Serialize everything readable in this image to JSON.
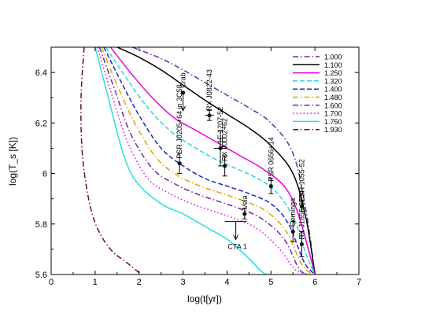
{
  "chart_data": {
    "type": "line",
    "xlabel": "log(t[yr])",
    "ylabel": "log(T_s [K])",
    "xlim": [
      0,
      7
    ],
    "ylim": [
      5.6,
      6.5
    ],
    "xticks": [
      "0",
      "1",
      "2",
      "3",
      "4",
      "5",
      "6",
      "7"
    ],
    "yticks": [
      "5.6",
      "5.8",
      "6",
      "6.2",
      "6.4"
    ],
    "legend_position": "top-right",
    "series": [
      {
        "name": "1.000",
        "color": "#6a2c9e",
        "dash": "dashdot",
        "x": [
          1.85,
          2.5,
          3.0,
          3.5,
          4.0,
          4.5,
          5.0,
          5.5,
          5.8,
          6.0
        ],
        "y": [
          6.5,
          6.455,
          6.41,
          6.36,
          6.31,
          6.26,
          6.2,
          6.08,
          5.85,
          5.6
        ]
      },
      {
        "name": "1.100",
        "color": "#000000",
        "dash": "solid",
        "x": [
          1.5,
          2.0,
          2.5,
          3.0,
          3.5,
          4.0,
          4.5,
          5.0,
          5.5,
          5.8,
          6.0
        ],
        "y": [
          6.5,
          6.46,
          6.41,
          6.35,
          6.29,
          6.235,
          6.18,
          6.11,
          6.0,
          5.82,
          5.6
        ]
      },
      {
        "name": "1.250",
        "color": "#e800e8",
        "dash": "solid",
        "x": [
          1.35,
          1.8,
          2.3,
          2.8,
          3.3,
          3.8,
          4.3,
          4.8,
          5.3,
          5.6,
          5.85,
          6.0
        ],
        "y": [
          6.5,
          6.4,
          6.3,
          6.22,
          6.17,
          6.12,
          6.07,
          6.02,
          5.95,
          5.85,
          5.7,
          5.6
        ]
      },
      {
        "name": "1.320",
        "color": "#28d8e0",
        "dash": "dash",
        "x": [
          1.25,
          1.7,
          2.2,
          2.7,
          3.2,
          3.7,
          4.2,
          4.7,
          5.1,
          5.5,
          5.8,
          6.0
        ],
        "y": [
          6.5,
          6.38,
          6.26,
          6.17,
          6.11,
          6.06,
          6.02,
          5.98,
          5.93,
          5.83,
          5.68,
          5.6
        ]
      },
      {
        "name": "1.400",
        "color": "#1a28c8",
        "dash": "dash",
        "x": [
          1.2,
          1.6,
          2.0,
          2.5,
          3.0,
          3.5,
          4.0,
          4.5,
          5.0,
          5.4,
          5.75,
          6.0
        ],
        "y": [
          6.5,
          6.36,
          6.23,
          6.1,
          6.03,
          5.98,
          5.95,
          5.92,
          5.88,
          5.8,
          5.65,
          5.6
        ]
      },
      {
        "name": "1.480",
        "color": "#e8a000",
        "dash": "dashdot",
        "x": [
          1.15,
          1.5,
          1.9,
          2.4,
          2.9,
          3.4,
          3.9,
          4.4,
          4.9,
          5.35,
          5.7,
          5.95
        ],
        "y": [
          6.5,
          6.35,
          6.2,
          6.06,
          5.99,
          5.95,
          5.92,
          5.89,
          5.85,
          5.77,
          5.64,
          5.6
        ]
      },
      {
        "name": "1.600",
        "color": "#6a2c9e",
        "dash": "dashdot",
        "x": [
          1.1,
          1.45,
          1.8,
          2.3,
          2.8,
          3.3,
          3.8,
          4.3,
          4.8,
          5.3,
          5.65,
          5.9
        ],
        "y": [
          6.5,
          6.33,
          6.16,
          6.02,
          5.96,
          5.92,
          5.89,
          5.86,
          5.82,
          5.74,
          5.62,
          5.6
        ]
      },
      {
        "name": "1.700",
        "color": "#e800e8",
        "dash": "dot",
        "x": [
          1.05,
          1.4,
          1.75,
          2.2,
          2.7,
          3.2,
          3.7,
          4.2,
          4.7,
          5.2,
          5.55,
          5.85
        ],
        "y": [
          6.5,
          6.3,
          6.12,
          5.98,
          5.92,
          5.88,
          5.85,
          5.82,
          5.78,
          5.7,
          5.62,
          5.6
        ]
      },
      {
        "name": "1.750",
        "color": "#28e0e0",
        "dash": "solid",
        "x": [
          1.0,
          1.3,
          1.6,
          1.85,
          2.2,
          2.6,
          3.0,
          3.5,
          4.0,
          4.4,
          4.8,
          4.95
        ],
        "y": [
          6.5,
          6.3,
          6.1,
          5.99,
          5.92,
          5.87,
          5.84,
          5.79,
          5.74,
          5.68,
          5.61,
          5.6
        ]
      },
      {
        "name": "1.930",
        "color": "#6e0a28",
        "dash": "dashdot",
        "x": [
          0.75,
          0.68,
          0.7,
          0.8,
          0.95,
          1.15,
          1.4,
          1.7,
          2.05
        ],
        "y": [
          6.5,
          6.3,
          6.1,
          5.95,
          5.83,
          5.75,
          5.69,
          5.65,
          5.6
        ]
      }
    ],
    "observations": [
      {
        "label": "Crab",
        "x": 3.0,
        "y": 6.32,
        "upper_limit": true
      },
      {
        "label": "RX J0822-43",
        "x": 3.6,
        "y": 6.23,
        "xerr": 0.1,
        "yerr": 0.02
      },
      {
        "label": "1E 1207-52",
        "x": 3.85,
        "y": 6.1,
        "xerr": 0.15,
        "yerr": 0.07
      },
      {
        "label": "RX J0002+62",
        "x": 3.95,
        "y": 6.03,
        "yerr": 0.04
      },
      {
        "label": "PSR J0205+64 in 3C58",
        "x": 2.92,
        "y": 6.04,
        "yerr": 0.04
      },
      {
        "label": "Vela",
        "x": 4.4,
        "y": 5.84,
        "yerr": 0.02
      },
      {
        "label": "PSR 0656+14",
        "x": 5.0,
        "y": 5.95,
        "yerr": 0.03
      },
      {
        "label": "Geminga",
        "x": 5.5,
        "y": 5.77,
        "yerr": 0.04
      },
      {
        "label": "PSR 1055-52",
        "x": 5.7,
        "y": 5.87,
        "yerr": 0.02
      },
      {
        "label": "RX J1856-3754",
        "x": 5.7,
        "y": 5.72,
        "yerr": 0.05
      },
      {
        "label": "CTA 1",
        "x": 4.2,
        "y": 5.81,
        "xerr": 0.25,
        "upper_limit": true
      }
    ]
  }
}
